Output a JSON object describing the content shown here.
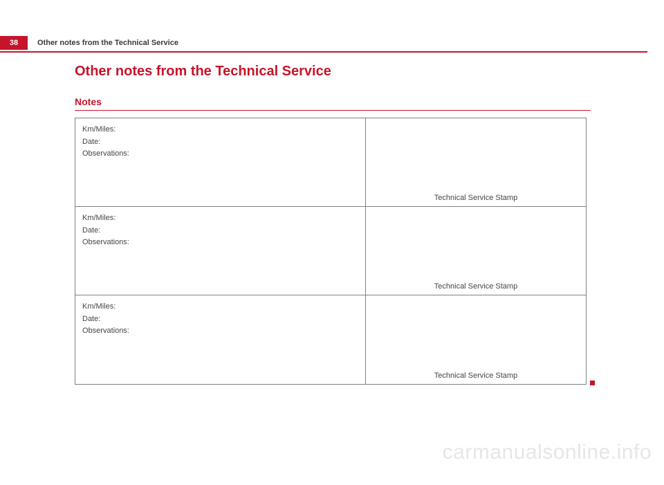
{
  "page_number": "38",
  "running_title": "Other notes from the Technical Service",
  "heading": "Other notes from the Technical Service",
  "subheading": "Notes",
  "rows": [
    {
      "km_label": "Km/Miles:",
      "date_label": "Date:",
      "obs_label": "Observations:",
      "stamp_label": "Technical Service Stamp"
    },
    {
      "km_label": "Km/Miles:",
      "date_label": "Date:",
      "obs_label": "Observations:",
      "stamp_label": "Technical Service Stamp"
    },
    {
      "km_label": "Km/Miles:",
      "date_label": "Date:",
      "obs_label": "Observations:",
      "stamp_label": "Technical Service Stamp"
    }
  ],
  "watermark": "carmanualsonline.info",
  "colors": {
    "accent": "#c6142b",
    "text": "#3a3a3a",
    "border": "#808080",
    "watermark": "#e6e6e6",
    "background": "#ffffff"
  }
}
